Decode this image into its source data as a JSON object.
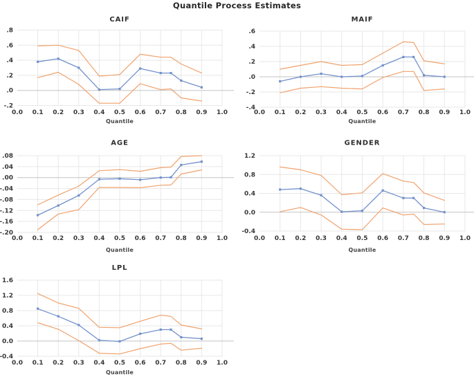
{
  "figure": {
    "title": "Quantile Process Estimates",
    "xaxis_label": "Quantile",
    "x_tick_labels": [
      "0.0",
      "0.1",
      "0.2",
      "0.3",
      "0.4",
      "0.5",
      "0.6",
      "0.7",
      "0.8",
      "0.9",
      "1.0"
    ]
  },
  "colors": {
    "estimate_line": "#7291cb",
    "confidence_band": "#f0a16b",
    "gridline": "#e7e7e7",
    "zero_line": "#c3c3c3",
    "tick_text": "#383838",
    "title_text": "#262626"
  },
  "chart_data": [
    {
      "type": "line",
      "title": "CAIF",
      "xlabel": "Quantile",
      "xlim": [
        0.0,
        1.0
      ],
      "ylim": [
        -0.2,
        0.8
      ],
      "grid": true,
      "legend": false,
      "x": [
        0.1,
        0.2,
        0.3,
        0.4,
        0.5,
        0.6,
        0.7,
        0.75,
        0.8,
        0.9
      ],
      "series": [
        {
          "name": "quantile-estimate",
          "marker": "square",
          "values": [
            0.38,
            0.42,
            0.3,
            0.01,
            0.02,
            0.29,
            0.23,
            0.23,
            0.13,
            0.04
          ]
        },
        {
          "name": "upper-confidence-band",
          "marker": "none",
          "values": [
            0.59,
            0.6,
            0.53,
            0.19,
            0.21,
            0.48,
            0.44,
            0.44,
            0.35,
            0.23
          ]
        },
        {
          "name": "lower-confidence-band",
          "marker": "none",
          "values": [
            0.17,
            0.24,
            0.08,
            -0.17,
            -0.17,
            0.09,
            0.01,
            0.02,
            -0.1,
            -0.14
          ]
        }
      ],
      "ytick_labels": [
        ".8",
        ".6",
        ".4",
        ".2",
        ".0",
        "-.2"
      ],
      "ytick_values": [
        0.8,
        0.6,
        0.4,
        0.2,
        0.0,
        -0.2
      ]
    },
    {
      "type": "line",
      "title": "MAIF",
      "xlabel": "Quantile",
      "xlim": [
        0.0,
        1.0
      ],
      "ylim": [
        -0.4,
        0.6
      ],
      "grid": true,
      "legend": false,
      "x": [
        0.1,
        0.2,
        0.3,
        0.4,
        0.5,
        0.6,
        0.7,
        0.75,
        0.8,
        0.9
      ],
      "series": [
        {
          "name": "quantile-estimate",
          "marker": "square",
          "values": [
            -0.06,
            0.0,
            0.04,
            0.0,
            0.01,
            0.15,
            0.26,
            0.26,
            0.02,
            0.0
          ]
        },
        {
          "name": "upper-confidence-band",
          "marker": "none",
          "values": [
            0.1,
            0.15,
            0.2,
            0.15,
            0.16,
            0.31,
            0.46,
            0.45,
            0.21,
            0.17
          ]
        },
        {
          "name": "lower-confidence-band",
          "marker": "none",
          "values": [
            -0.21,
            -0.15,
            -0.13,
            -0.15,
            -0.16,
            -0.01,
            0.07,
            0.07,
            -0.18,
            -0.16
          ]
        }
      ],
      "ytick_labels": [
        ".6",
        ".4",
        ".2",
        ".0",
        "-.2",
        "-.4"
      ],
      "ytick_values": [
        0.6,
        0.4,
        0.2,
        0.0,
        -0.2,
        -0.4
      ]
    },
    {
      "type": "line",
      "title": "AGE",
      "xlabel": "Quantile",
      "xlim": [
        0.0,
        1.0
      ],
      "ylim": [
        -0.2,
        0.08
      ],
      "grid": true,
      "legend": false,
      "x": [
        0.1,
        0.2,
        0.3,
        0.4,
        0.5,
        0.6,
        0.7,
        0.75,
        0.8,
        0.9
      ],
      "series": [
        {
          "name": "quantile-estimate",
          "marker": "square",
          "values": [
            -0.137,
            -0.102,
            -0.065,
            -0.006,
            -0.004,
            -0.008,
            0.0,
            0.001,
            0.046,
            0.058
          ]
        },
        {
          "name": "upper-confidence-band",
          "marker": "none",
          "values": [
            -0.099,
            -0.064,
            -0.031,
            0.025,
            0.029,
            0.023,
            0.036,
            0.038,
            0.077,
            0.08
          ]
        },
        {
          "name": "lower-confidence-band",
          "marker": "none",
          "values": [
            -0.19,
            -0.133,
            -0.117,
            -0.036,
            -0.036,
            -0.037,
            -0.028,
            -0.027,
            0.013,
            0.028
          ]
        }
      ],
      "ytick_labels": [
        ".08",
        ".04",
        ".00",
        "-.04",
        "-.08",
        "-.12",
        "-.16",
        "-.20"
      ],
      "ytick_values": [
        0.08,
        0.04,
        0.0,
        -0.04,
        -0.08,
        -0.12,
        -0.16,
        -0.2
      ]
    },
    {
      "type": "line",
      "title": "GENDER",
      "xlabel": "Quantile",
      "xlim": [
        0.0,
        1.0
      ],
      "ylim": [
        -0.4,
        1.2
      ],
      "grid": true,
      "legend": false,
      "x": [
        0.1,
        0.2,
        0.3,
        0.4,
        0.5,
        0.6,
        0.7,
        0.75,
        0.8,
        0.9
      ],
      "series": [
        {
          "name": "quantile-estimate",
          "marker": "square",
          "values": [
            0.48,
            0.5,
            0.36,
            0.01,
            0.03,
            0.46,
            0.3,
            0.3,
            0.09,
            0.0
          ]
        },
        {
          "name": "upper-confidence-band",
          "marker": "none",
          "values": [
            0.96,
            0.9,
            0.78,
            0.37,
            0.41,
            0.82,
            0.66,
            0.63,
            0.41,
            0.25
          ]
        },
        {
          "name": "lower-confidence-band",
          "marker": "none",
          "values": [
            0.01,
            0.1,
            -0.06,
            -0.36,
            -0.37,
            0.09,
            -0.06,
            -0.04,
            -0.26,
            -0.25
          ]
        }
      ],
      "ytick_labels": [
        "1.2",
        "0.8",
        "0.4",
        "0.0",
        "-0.4"
      ],
      "ytick_values": [
        1.2,
        0.8,
        0.4,
        0.0,
        -0.4
      ]
    },
    {
      "type": "line",
      "title": "LPL",
      "xlabel": "Quantile",
      "xlim": [
        0.0,
        1.0
      ],
      "ylim": [
        -0.4,
        1.6
      ],
      "grid": true,
      "legend": false,
      "x": [
        0.1,
        0.2,
        0.3,
        0.4,
        0.5,
        0.6,
        0.7,
        0.75,
        0.8,
        0.9
      ],
      "series": [
        {
          "name": "quantile-estimate",
          "marker": "square",
          "values": [
            0.85,
            0.65,
            0.42,
            0.02,
            -0.01,
            0.19,
            0.3,
            0.3,
            0.1,
            0.06
          ]
        },
        {
          "name": "upper-confidence-band",
          "marker": "none",
          "values": [
            1.25,
            1.0,
            0.86,
            0.36,
            0.35,
            0.52,
            0.68,
            0.65,
            0.42,
            0.32
          ]
        },
        {
          "name": "lower-confidence-band",
          "marker": "none",
          "values": [
            0.48,
            0.31,
            0.01,
            -0.32,
            -0.34,
            -0.2,
            -0.08,
            -0.06,
            -0.24,
            -0.19
          ]
        }
      ],
      "ytick_labels": [
        "1.6",
        "1.2",
        "0.8",
        "0.4",
        "0.0",
        "-0.4"
      ],
      "ytick_values": [
        1.6,
        1.2,
        0.8,
        0.4,
        0.0,
        -0.4
      ]
    }
  ]
}
